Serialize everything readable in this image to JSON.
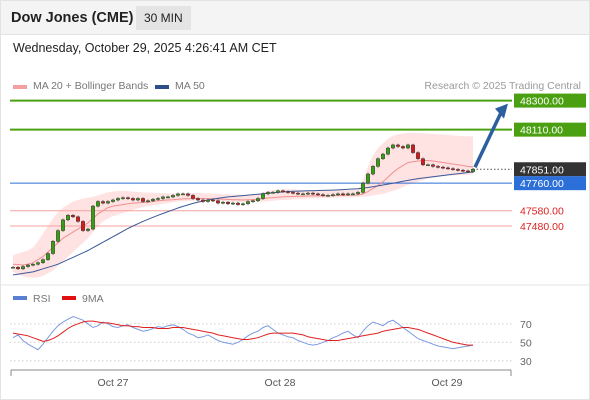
{
  "header": {
    "title": "Dow Jones (CME)",
    "timeframe": "30 MIN"
  },
  "datetime": "Wednesday, October 29, 2025 4:26:41 AM CET",
  "legend": {
    "ma20": {
      "label": "MA 20 + Bollinger Bands",
      "color": "#f08a80"
    },
    "ma50": {
      "label": "MA 50",
      "color": "#2c4f8c"
    }
  },
  "research": "Research © 2025 Trading Central",
  "colors": {
    "resistance": "#4aa010",
    "support_line": "#f4a0a0",
    "support_text": "#e02020",
    "pivot": "#2d6fd8",
    "last": "#333333",
    "arrow": "#2c5f9e",
    "up": "#3a9a1a",
    "down": "#c82020"
  },
  "chart_data": [
    {
      "type": "line",
      "title": "",
      "x_ticks": [
        "Oct 27",
        "Oct 28",
        "Oct 29"
      ],
      "ylim": [
        47140,
        48330
      ],
      "levels": [
        {
          "value": 48300,
          "label": "48300.00",
          "kind": "resistance"
        },
        {
          "value": 48110,
          "label": "48110.00",
          "kind": "resistance"
        },
        {
          "value": 47851,
          "label": "47851.00",
          "kind": "last"
        },
        {
          "value": 47760,
          "label": "47760.00",
          "kind": "pivot"
        },
        {
          "value": 47580,
          "label": "47580.00",
          "kind": "support"
        },
        {
          "value": 47480,
          "label": "47480.00",
          "kind": "support"
        }
      ],
      "price_close": [
        47210,
        47200,
        47215,
        47225,
        47230,
        47240,
        47260,
        47300,
        47380,
        47450,
        47520,
        47550,
        47540,
        47510,
        47450,
        47460,
        47610,
        47640,
        47630,
        47640,
        47650,
        47660,
        47665,
        47660,
        47650,
        47660,
        47640,
        47645,
        47655,
        47660,
        47670,
        47670,
        47680,
        47690,
        47690,
        47680,
        47660,
        47650,
        47640,
        47650,
        47645,
        47630,
        47635,
        47625,
        47630,
        47620,
        47625,
        47640,
        47645,
        47660,
        47690,
        47700,
        47700,
        47710,
        47705,
        47700,
        47695,
        47690,
        47690,
        47695,
        47690,
        47685,
        47680,
        47680,
        47685,
        47690,
        47685,
        47690,
        47690,
        47700,
        47760,
        47820,
        47870,
        47920,
        47950,
        47990,
        48010,
        48000,
        47990,
        48010,
        47960,
        47920,
        47880,
        47880,
        47870,
        47865,
        47860,
        47855,
        47850,
        47845,
        47840,
        47835,
        47851
      ],
      "ma20": [
        47230,
        47228,
        47225,
        47230,
        47240,
        47260,
        47280,
        47310,
        47340,
        47370,
        47400,
        47420,
        47440,
        47460,
        47480,
        47500,
        47530,
        47560,
        47580,
        47600,
        47610,
        47615,
        47620,
        47625,
        47630,
        47632,
        47634,
        47635,
        47640,
        47645,
        47648,
        47650,
        47652,
        47655,
        47657,
        47658,
        47659,
        47660,
        47660,
        47659,
        47658,
        47657,
        47655,
        47654,
        47652,
        47651,
        47650,
        47651,
        47652,
        47655,
        47660,
        47663,
        47666,
        47668,
        47670,
        47672,
        47673,
        47674,
        47675,
        47676,
        47677,
        47677,
        47678,
        47678,
        47679,
        47680,
        47680,
        47681,
        47682,
        47683,
        47690,
        47705,
        47725,
        47745,
        47770,
        47800,
        47830,
        47855,
        47875,
        47895,
        47900,
        47905,
        47908,
        47908,
        47905,
        47900,
        47895,
        47890,
        47885,
        47880,
        47875,
        47870,
        47866
      ],
      "bb_upper": [
        47290,
        47300,
        47310,
        47320,
        47340,
        47380,
        47430,
        47480,
        47530,
        47570,
        47600,
        47620,
        47640,
        47650,
        47660,
        47665,
        47670,
        47680,
        47690,
        47700,
        47705,
        47708,
        47710,
        47708,
        47705,
        47702,
        47700,
        47698,
        47697,
        47695,
        47694,
        47693,
        47692,
        47692,
        47693,
        47694,
        47695,
        47695,
        47694,
        47693,
        47692,
        47690,
        47688,
        47687,
        47686,
        47685,
        47684,
        47685,
        47686,
        47688,
        47700,
        47710,
        47715,
        47718,
        47720,
        47720,
        47719,
        47718,
        47716,
        47715,
        47714,
        47713,
        47712,
        47712,
        47712,
        47713,
        47714,
        47715,
        47716,
        47718,
        47780,
        47870,
        47940,
        47990,
        48020,
        48050,
        48070,
        48080,
        48085,
        48090,
        48090,
        48088,
        48086,
        48084,
        48082,
        48080,
        48078,
        48075,
        48072,
        48070,
        48068,
        48066,
        48065
      ],
      "bb_lower": [
        47180,
        47165,
        47150,
        47145,
        47140,
        47145,
        47155,
        47170,
        47190,
        47220,
        47250,
        47280,
        47310,
        47340,
        47370,
        47400,
        47440,
        47480,
        47510,
        47530,
        47545,
        47555,
        47565,
        47575,
        47585,
        47595,
        47605,
        47610,
        47615,
        47620,
        47625,
        47630,
        47635,
        47640,
        47642,
        47644,
        47645,
        47646,
        47646,
        47645,
        47644,
        47642,
        47640,
        47638,
        47637,
        47636,
        47635,
        47636,
        47637,
        47638,
        47640,
        47642,
        47645,
        47648,
        47650,
        47652,
        47654,
        47656,
        47658,
        47660,
        47661,
        47662,
        47663,
        47664,
        47665,
        47666,
        47667,
        47668,
        47669,
        47670,
        47672,
        47675,
        47680,
        47685,
        47690,
        47700,
        47710,
        47720,
        47735,
        47750,
        47760,
        47770,
        47780,
        47790,
        47795,
        47800,
        47805,
        47808,
        47810,
        47812,
        47814,
        47816,
        47818
      ],
      "ma50": [
        47160,
        47165,
        47170,
        47175,
        47180,
        47190,
        47200,
        47210,
        47220,
        47230,
        47245,
        47260,
        47275,
        47290,
        47305,
        47320,
        47338,
        47356,
        47374,
        47392,
        47410,
        47428,
        47446,
        47464,
        47480,
        47495,
        47510,
        47524,
        47537,
        47550,
        47562,
        47574,
        47586,
        47598,
        47608,
        47618,
        47628,
        47636,
        47643,
        47650,
        47656,
        47661,
        47666,
        47670,
        47673,
        47676,
        47679,
        47682,
        47685,
        47688,
        47691,
        47694,
        47697,
        47700,
        47703,
        47705,
        47707,
        47708,
        47709,
        47710,
        47711,
        47712,
        47713,
        47714,
        47715,
        47716,
        47718,
        47720,
        47722,
        47724,
        47728,
        47732,
        47737,
        47742,
        47748,
        47754,
        47760,
        47766,
        47772,
        47778,
        47784,
        47790,
        47794,
        47798,
        47802,
        47806,
        47810,
        47814,
        47818,
        47822,
        47826,
        47830,
        47833
      ],
      "forecast_target": 48300
    },
    {
      "type": "line",
      "legend": [
        "RSI",
        "9MA"
      ],
      "ylim": [
        20,
        85
      ],
      "y_ticks": [
        70,
        50,
        30
      ],
      "rsi": [
        55,
        58,
        52,
        48,
        45,
        42,
        48,
        55,
        62,
        68,
        72,
        75,
        78,
        76,
        74,
        70,
        66,
        68,
        72,
        70,
        67,
        66,
        68,
        69,
        66,
        64,
        62,
        63,
        65,
        67,
        66,
        68,
        69,
        67,
        64,
        60,
        58,
        55,
        56,
        58,
        55,
        52,
        50,
        49,
        48,
        50,
        53,
        57,
        60,
        62,
        66,
        68,
        64,
        60,
        58,
        56,
        55,
        52,
        50,
        48,
        47,
        48,
        50,
        52,
        55,
        57,
        60,
        62,
        58,
        55,
        62,
        68,
        72,
        70,
        68,
        72,
        74,
        70,
        66,
        62,
        58,
        54,
        52,
        50,
        48,
        46,
        45,
        44,
        43,
        44,
        45,
        46,
        47
      ],
      "ma9": [
        60,
        59,
        58,
        57,
        55,
        53,
        51,
        52,
        54,
        57,
        61,
        65,
        68,
        70,
        72,
        73,
        73,
        72,
        71,
        71,
        70,
        69,
        68,
        68,
        67,
        67,
        66,
        66,
        66,
        65,
        65,
        65,
        66,
        66,
        66,
        65,
        64,
        63,
        62,
        61,
        60,
        58,
        57,
        56,
        55,
        54,
        53,
        53,
        54,
        55,
        57,
        59,
        60,
        60,
        60,
        60,
        60,
        59,
        58,
        56,
        55,
        54,
        53,
        52,
        52,
        52,
        53,
        54,
        55,
        56,
        57,
        58,
        59,
        60,
        62,
        63,
        64,
        65,
        66,
        66,
        65,
        64,
        62,
        60,
        58,
        56,
        54,
        52,
        50,
        49,
        48,
        47,
        47
      ]
    }
  ]
}
